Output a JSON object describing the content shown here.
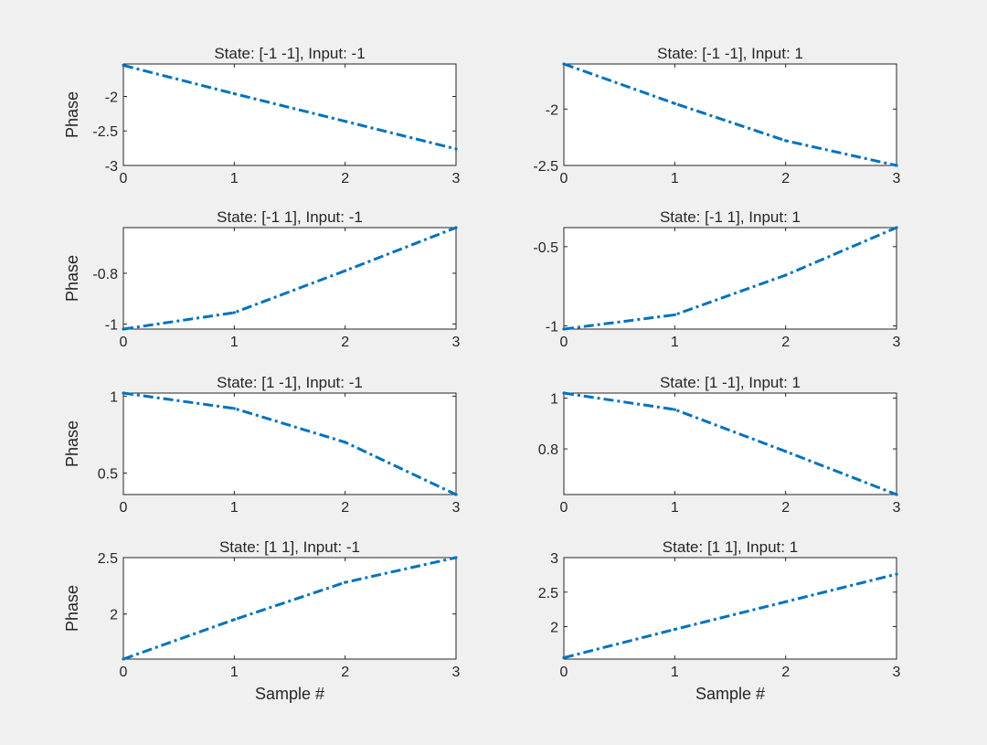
{
  "figure": {
    "background": "#f0f0f0"
  },
  "chart_data": [
    {
      "type": "line",
      "title": "State: [-1 -1], Input: -1",
      "xlabel": "",
      "ylabel": "Phase",
      "xlim": [
        0,
        3
      ],
      "ylim": [
        -3,
        -1.53
      ],
      "xticks": [
        "0",
        "1",
        "2",
        "3"
      ],
      "yticks": [
        -3,
        -2.5,
        -2
      ],
      "ytick_labels": [
        "-3",
        "-2.5",
        "-2"
      ],
      "x": [
        0,
        1,
        2,
        3
      ],
      "series": [
        {
          "values": [
            -1.55,
            -1.96,
            -2.36,
            -2.76
          ],
          "color": "#0072bd",
          "line_style": "dash-dot"
        }
      ],
      "grid": false
    },
    {
      "type": "line",
      "title": "State: [-1 -1], Input: 1",
      "xlabel": "",
      "ylabel": "",
      "xlim": [
        0,
        3
      ],
      "ylim": [
        -2.5,
        -1.6
      ],
      "xticks": [
        "0",
        "1",
        "2",
        "3"
      ],
      "yticks": [
        -2.5,
        -2
      ],
      "ytick_labels": [
        "-2.5",
        "-2"
      ],
      "x": [
        0,
        1,
        2,
        3
      ],
      "series": [
        {
          "values": [
            -1.6,
            -1.95,
            -2.28,
            -2.5
          ],
          "color": "#0072bd",
          "line_style": "dash-dot"
        }
      ],
      "grid": false
    },
    {
      "type": "line",
      "title": "State: [-1  1], Input: -1",
      "xlabel": "",
      "ylabel": "Phase",
      "xlim": [
        0,
        3
      ],
      "ylim": [
        -1.02,
        -0.62
      ],
      "xticks": [
        "0",
        "1",
        "2",
        "3"
      ],
      "yticks": [
        -1,
        -0.8
      ],
      "ytick_labels": [
        "-1",
        "-0.8"
      ],
      "x": [
        0,
        1,
        2,
        3
      ],
      "series": [
        {
          "values": [
            -1.02,
            -0.955,
            -0.79,
            -0.62
          ],
          "color": "#0072bd",
          "line_style": "dash-dot"
        }
      ],
      "grid": false
    },
    {
      "type": "line",
      "title": "State: [-1  1], Input: 1",
      "xlabel": "",
      "ylabel": "",
      "xlim": [
        0,
        3
      ],
      "ylim": [
        -1.02,
        -0.38
      ],
      "xticks": [
        "0",
        "1",
        "2",
        "3"
      ],
      "yticks": [
        -1,
        -0.5
      ],
      "ytick_labels": [
        "-1",
        "-0.5"
      ],
      "x": [
        0,
        1,
        2,
        3
      ],
      "series": [
        {
          "values": [
            -1.02,
            -0.93,
            -0.68,
            -0.38
          ],
          "color": "#0072bd",
          "line_style": "dash-dot"
        }
      ],
      "grid": false
    },
    {
      "type": "line",
      "title": "State: [1 -1], Input: -1",
      "xlabel": "",
      "ylabel": "Phase",
      "xlim": [
        0,
        3
      ],
      "ylim": [
        0.36,
        1.02
      ],
      "xticks": [
        "0",
        "1",
        "2",
        "3"
      ],
      "yticks": [
        0.5,
        1
      ],
      "ytick_labels": [
        "0.5",
        "1"
      ],
      "x": [
        0,
        1,
        2,
        3
      ],
      "series": [
        {
          "values": [
            1.02,
            0.92,
            0.7,
            0.36
          ],
          "color": "#0072bd",
          "line_style": "dash-dot"
        }
      ],
      "grid": false
    },
    {
      "type": "line",
      "title": "State: [1 -1], Input: 1",
      "xlabel": "",
      "ylabel": "",
      "xlim": [
        0,
        3
      ],
      "ylim": [
        0.62,
        1.02
      ],
      "xticks": [
        "0",
        "1",
        "2",
        "3"
      ],
      "yticks": [
        0.8,
        1
      ],
      "ytick_labels": [
        "0.8",
        "1"
      ],
      "x": [
        0,
        1,
        2,
        3
      ],
      "series": [
        {
          "values": [
            1.02,
            0.955,
            0.79,
            0.62
          ],
          "color": "#0072bd",
          "line_style": "dash-dot"
        }
      ],
      "grid": false
    },
    {
      "type": "line",
      "title": "State: [1  1], Input: -1",
      "xlabel": "Sample #",
      "ylabel": "Phase",
      "xlim": [
        0,
        3
      ],
      "ylim": [
        1.6,
        2.5
      ],
      "xticks": [
        "0",
        "1",
        "2",
        "3"
      ],
      "yticks": [
        2,
        2.5
      ],
      "ytick_labels": [
        "2",
        "2.5"
      ],
      "x": [
        0,
        1,
        2,
        3
      ],
      "series": [
        {
          "values": [
            1.6,
            1.95,
            2.28,
            2.5
          ],
          "color": "#0072bd",
          "line_style": "dash-dot"
        }
      ],
      "grid": false
    },
    {
      "type": "line",
      "title": "State: [1  1], Input: 1",
      "xlabel": "Sample #",
      "ylabel": "",
      "xlim": [
        0,
        3
      ],
      "ylim": [
        1.53,
        3
      ],
      "xticks": [
        "0",
        "1",
        "2",
        "3"
      ],
      "yticks": [
        2,
        2.5,
        3
      ],
      "ytick_labels": [
        "2",
        "2.5",
        "3"
      ],
      "x": [
        0,
        1,
        2,
        3
      ],
      "series": [
        {
          "values": [
            1.55,
            1.96,
            2.36,
            2.76
          ],
          "color": "#0072bd",
          "line_style": "dash-dot"
        }
      ],
      "grid": false
    }
  ]
}
